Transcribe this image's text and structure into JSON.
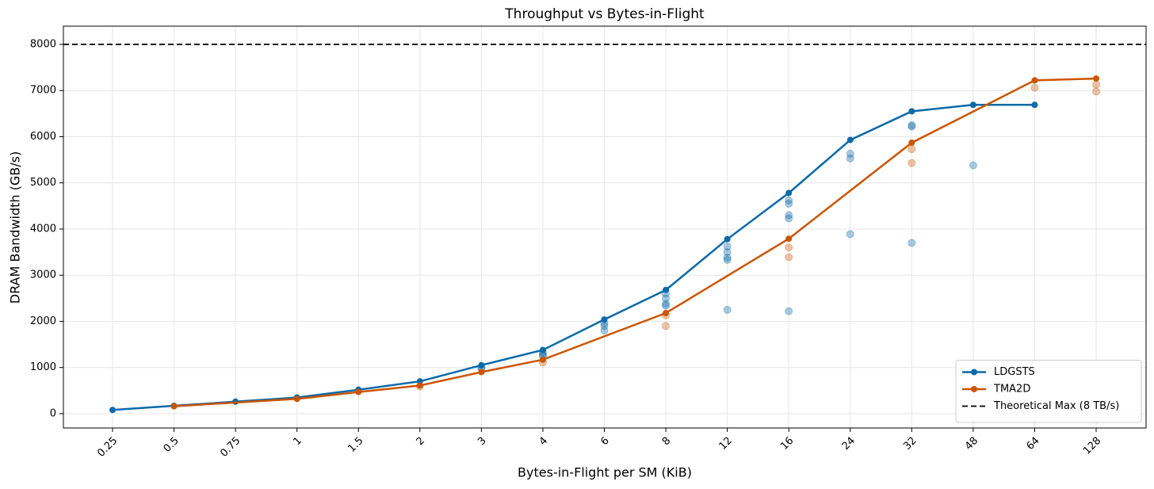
{
  "chart_data": {
    "type": "line",
    "title": "Throughput vs Bytes-in-Flight",
    "x_label": "Bytes-in-Flight per SM (KiB)",
    "y_label": "DRAM Bandwidth (GB/s)",
    "categories": [
      "0.25",
      "0.5",
      "0.75",
      "1",
      "1.5",
      "2",
      "3",
      "4",
      "6",
      "8",
      "12",
      "16",
      "24",
      "32",
      "48",
      "64",
      "128"
    ],
    "ylim": [
      -310,
      8395
    ],
    "yticks": [
      0,
      1000,
      2000,
      3000,
      4000,
      5000,
      6000,
      7000,
      8000
    ],
    "grid": true,
    "legend": "lower right",
    "series": [
      {
        "name": "LDGSTS",
        "color": "#0a6aaa",
        "x": [
          "0.25",
          "0.5",
          "0.75",
          "1",
          "1.5",
          "2",
          "3",
          "4",
          "6",
          "8",
          "12",
          "16",
          "24",
          "32",
          "48",
          "64"
        ],
        "values": [
          80,
          170,
          260,
          350,
          520,
          700,
          1050,
          1380,
          2040,
          2680,
          3780,
          4780,
          5930,
          6550,
          6690,
          6690
        ],
        "samples": {
          "x": [
            "3",
            "3",
            "4",
            "4",
            "4",
            "6",
            "6",
            "6",
            "8",
            "8",
            "8",
            "8",
            "12",
            "12",
            "12",
            "12",
            "12",
            "16",
            "16",
            "16",
            "16",
            "16",
            "24",
            "24",
            "24",
            "32",
            "32",
            "32",
            "48"
          ],
          "values": [
            1000,
            980,
            1330,
            1280,
            1250,
            1960,
            1900,
            1800,
            2600,
            2500,
            2380,
            2340,
            3620,
            3500,
            3380,
            3330,
            2250,
            4620,
            4550,
            4300,
            4230,
            2220,
            5630,
            5530,
            3890,
            6250,
            6220,
            3700,
            5380
          ]
        }
      },
      {
        "name": "TMA2D",
        "color": "#cc5500",
        "x": [
          "0.5",
          "1",
          "1.5",
          "2",
          "3",
          "4",
          "8",
          "16",
          "32",
          "64",
          "128"
        ],
        "values": [
          160,
          320,
          470,
          610,
          900,
          1170,
          2180,
          3790,
          5870,
          7220,
          7260
        ],
        "samples": {
          "x": [
            "2",
            "4",
            "8",
            "8",
            "16",
            "16",
            "32",
            "32",
            "64",
            "128",
            "128"
          ],
          "values": [
            590,
            1110,
            2130,
            1900,
            3600,
            3390,
            5730,
            5430,
            7060,
            7130,
            6980
          ]
        }
      }
    ],
    "reference_lines": [
      {
        "value": 8000,
        "label": "Theoretical Max (8 TB/s)",
        "color": "#000000",
        "style": "dashed"
      }
    ]
  }
}
